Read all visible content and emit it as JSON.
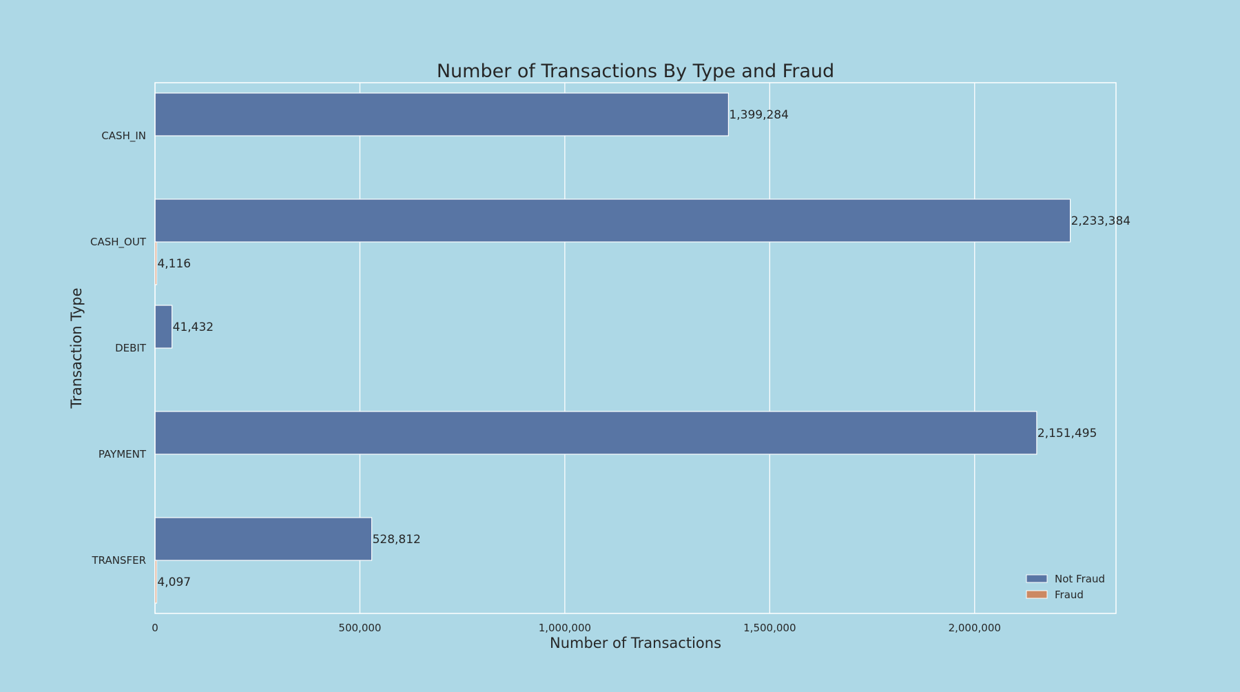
{
  "chart_data": {
    "type": "bar",
    "orientation": "horizontal",
    "title": "Number of Transactions By Type and Fraud",
    "xlabel": "Number of Transactions",
    "ylabel": "Transaction Type",
    "categories": [
      "CASH_IN",
      "CASH_OUT",
      "DEBIT",
      "PAYMENT",
      "TRANSFER"
    ],
    "xlim": [
      0,
      2345000
    ],
    "xticks": [
      0,
      500000,
      1000000,
      1500000,
      2000000
    ],
    "xtick_labels": [
      "0",
      "500,000",
      "1,000,000",
      "1,500,000",
      "2,000,000"
    ],
    "grid": true,
    "legend_position": "lower-right",
    "series": [
      {
        "name": "Not Fraud",
        "color": "#5875a4",
        "values": [
          1399284,
          2233384,
          41432,
          2151495,
          528812
        ],
        "labels": [
          "1,399,284",
          "2,233,384",
          "41,432",
          "2,151,495",
          "528,812"
        ]
      },
      {
        "name": "Fraud",
        "color": "#cc8963",
        "values": [
          0,
          4116,
          0,
          0,
          4097
        ],
        "labels": [
          "",
          "4,116",
          "",
          "",
          "4,097"
        ]
      }
    ]
  },
  "colors": {
    "background": "#add8e6",
    "grid": "#ffffff",
    "text": "#262626"
  }
}
